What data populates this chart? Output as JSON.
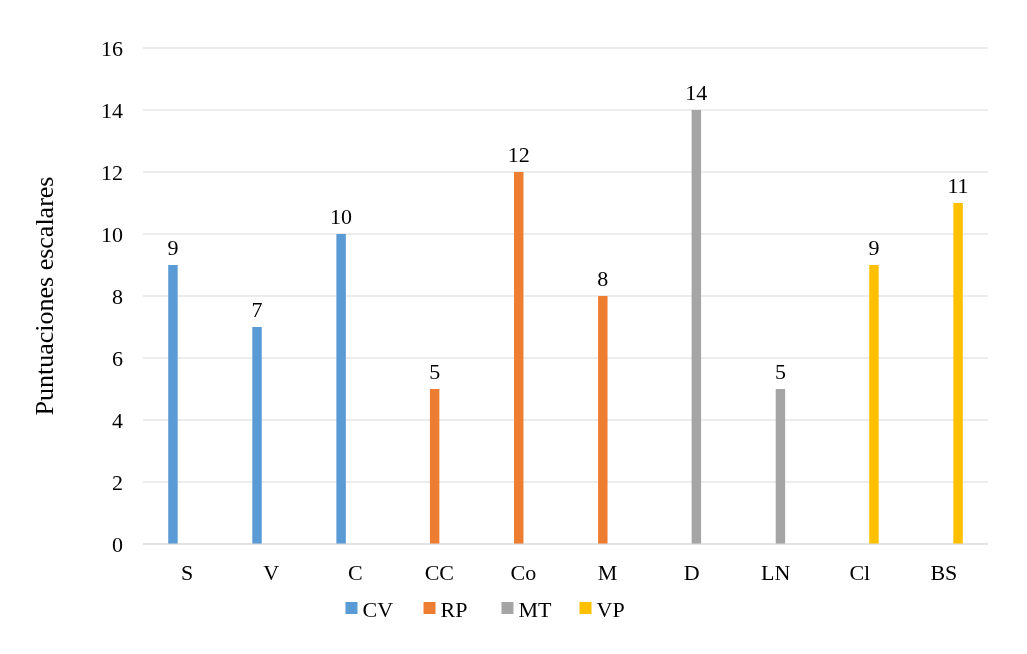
{
  "chart_data": {
    "type": "bar",
    "ylabel": "Puntuaciones escalares",
    "categories": [
      "S",
      "V",
      "C",
      "CC",
      "Co",
      "M",
      "D",
      "LN",
      "Cl",
      "BS"
    ],
    "series": [
      {
        "name": "CV",
        "color": "#5b9bd5",
        "values": [
          9,
          7,
          10,
          null,
          null,
          null,
          null,
          null,
          null,
          null
        ]
      },
      {
        "name": "RP",
        "color": "#ed7d31",
        "values": [
          null,
          null,
          null,
          5,
          12,
          8,
          null,
          null,
          null,
          null
        ]
      },
      {
        "name": "MT",
        "color": "#a5a5a5",
        "values": [
          null,
          null,
          null,
          null,
          null,
          null,
          14,
          5,
          null,
          null
        ]
      },
      {
        "name": "VP",
        "color": "#ffc000",
        "values": [
          null,
          null,
          null,
          null,
          null,
          null,
          null,
          null,
          9,
          11
        ]
      }
    ],
    "ylim": [
      0,
      16
    ],
    "yticks": [
      0,
      2,
      4,
      6,
      8,
      10,
      12,
      14,
      16
    ],
    "grid": "y",
    "legend": "bottom",
    "data_labels": true
  }
}
